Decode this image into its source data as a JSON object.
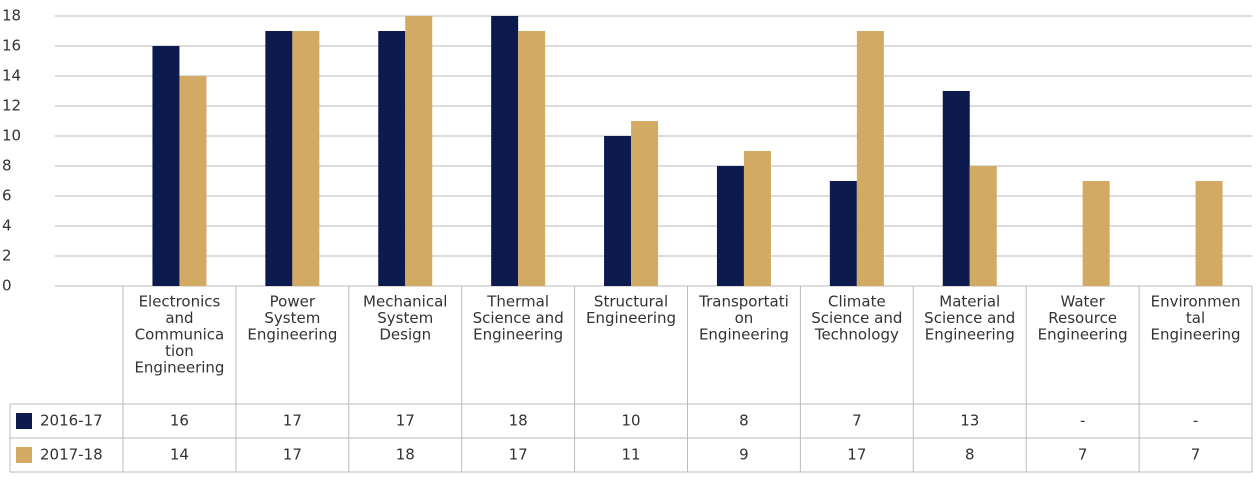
{
  "chart_data": {
    "type": "bar",
    "categories": [
      [
        "Electronics",
        "and",
        "Communica",
        "tion",
        "Engineering"
      ],
      [
        "Power",
        "System",
        "Engineering"
      ],
      [
        "Mechanical",
        "System",
        "Design"
      ],
      [
        "Thermal",
        "Science and",
        "Engineering"
      ],
      [
        "Structural",
        "Engineering"
      ],
      [
        "Transportati",
        "on",
        "Engineering"
      ],
      [
        "Climate",
        "Science and",
        "Technology"
      ],
      [
        "Material",
        "Science and",
        "Engineering"
      ],
      [
        "Water",
        "Resource",
        "Engineering"
      ],
      [
        "Environmen",
        "tal",
        "Engineering"
      ]
    ],
    "series": [
      {
        "name": "2016-17",
        "color": "#0c1a4d",
        "values": [
          16,
          17,
          17,
          18,
          10,
          8,
          7,
          13,
          null,
          null
        ],
        "value_labels": [
          "16",
          "17",
          "17",
          "18",
          "10",
          "8",
          "7",
          "13",
          "-",
          "-"
        ]
      },
      {
        "name": "2017-18",
        "color": "#d3aa64",
        "values": [
          14,
          17,
          18,
          17,
          11,
          9,
          17,
          8,
          7,
          7
        ]
      }
    ],
    "ylim": [
      0,
      18
    ],
    "yticks": [
      0,
      2,
      4,
      6,
      8,
      10,
      12,
      14,
      16,
      18
    ],
    "grid": true
  }
}
